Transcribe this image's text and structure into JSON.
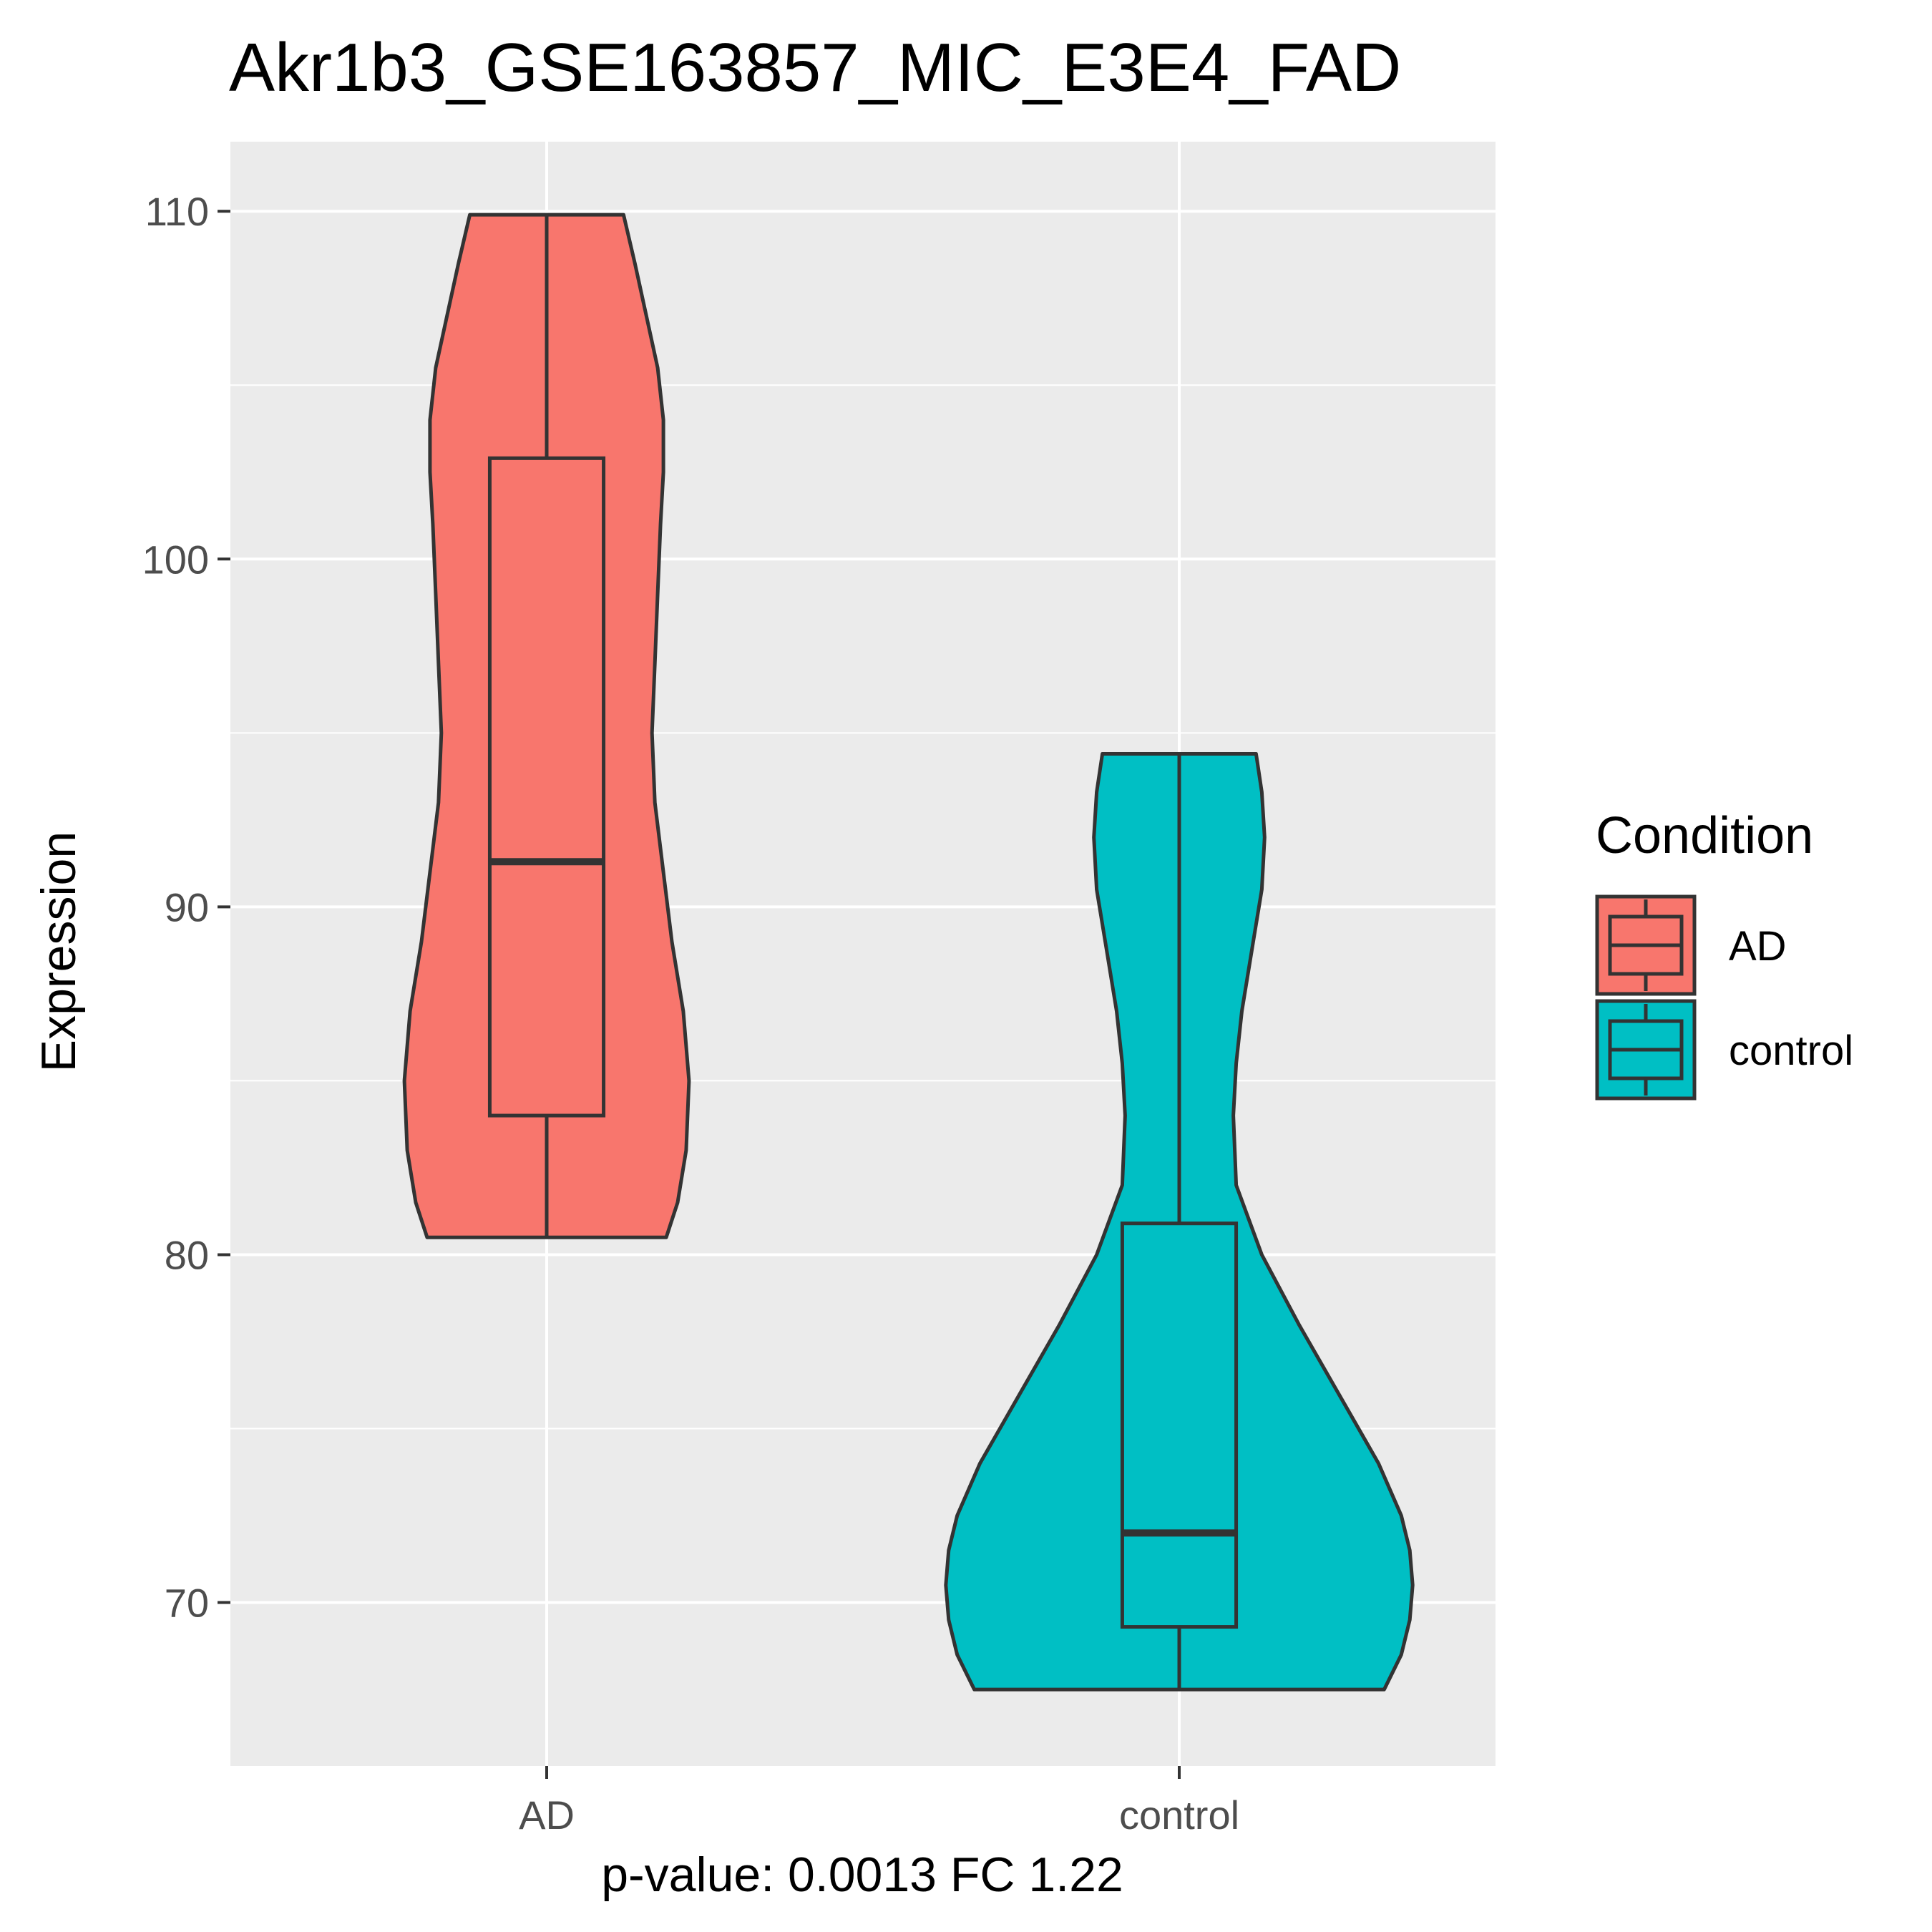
{
  "chart_data": {
    "type": "violin",
    "title": "Akr1b3_GSE163857_MIC_E3E4_FAD",
    "xlabel": "p-value: 0.0013 FC 1.22",
    "ylabel": "Expression",
    "categories": [
      "AD",
      "control"
    ],
    "ylim": [
      65.3,
      112.0
    ],
    "yticks": [
      70,
      80,
      90,
      100,
      110
    ],
    "grid": true,
    "legend": {
      "title": "Condition",
      "position": "right",
      "items": [
        "AD",
        "control"
      ]
    },
    "colors": [
      "#F8766D",
      "#00BFC4"
    ],
    "series": [
      {
        "name": "AD",
        "box": {
          "min": 80.5,
          "q1": 84.0,
          "median": 91.3,
          "q3": 102.9,
          "max": 109.9
        },
        "violin": [
          [
            80.5,
            0.42
          ],
          [
            81.5,
            0.46
          ],
          [
            83.0,
            0.49
          ],
          [
            85.0,
            0.5
          ],
          [
            87.0,
            0.48
          ],
          [
            89.0,
            0.44
          ],
          [
            91.0,
            0.41
          ],
          [
            93.0,
            0.38
          ],
          [
            95.0,
            0.37
          ],
          [
            97.0,
            0.38
          ],
          [
            99.0,
            0.39
          ],
          [
            101.0,
            0.4
          ],
          [
            102.5,
            0.41
          ],
          [
            104.0,
            0.41
          ],
          [
            105.5,
            0.39
          ],
          [
            107.0,
            0.35
          ],
          [
            108.5,
            0.31
          ],
          [
            109.9,
            0.27
          ]
        ]
      },
      {
        "name": "control",
        "box": {
          "min": 67.5,
          "q1": 69.3,
          "median": 72.0,
          "q3": 80.9,
          "max": 94.4
        },
        "violin": [
          [
            67.5,
            0.72
          ],
          [
            68.5,
            0.78
          ],
          [
            69.5,
            0.81
          ],
          [
            70.5,
            0.82
          ],
          [
            71.5,
            0.81
          ],
          [
            72.5,
            0.78
          ],
          [
            74.0,
            0.7
          ],
          [
            76.0,
            0.56
          ],
          [
            78.0,
            0.42
          ],
          [
            80.0,
            0.29
          ],
          [
            82.0,
            0.2
          ],
          [
            84.0,
            0.19
          ],
          [
            85.5,
            0.2
          ],
          [
            87.0,
            0.22
          ],
          [
            89.0,
            0.26
          ],
          [
            90.5,
            0.29
          ],
          [
            92.0,
            0.3
          ],
          [
            93.3,
            0.29
          ],
          [
            94.4,
            0.27
          ]
        ]
      }
    ]
  }
}
